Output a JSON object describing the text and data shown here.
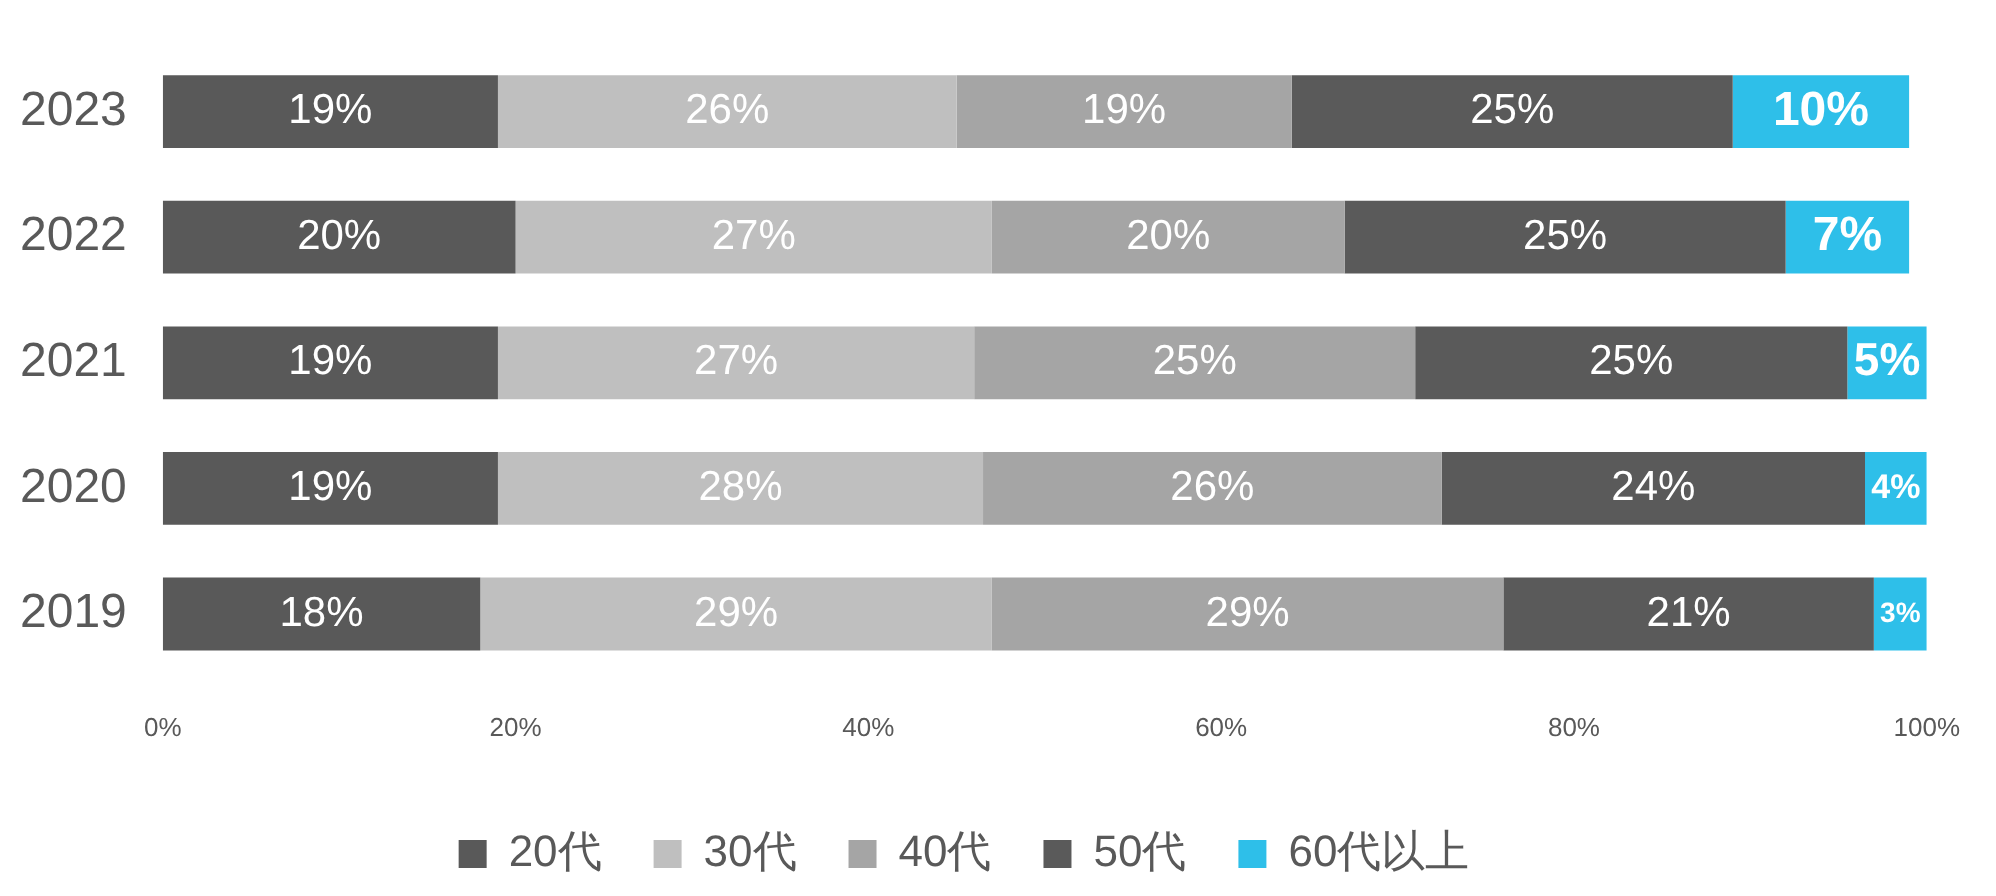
{
  "chart_data": {
    "type": "bar",
    "orientation": "horizontal",
    "stacked": true,
    "categories": [
      "2023",
      "2022",
      "2021",
      "2020",
      "2019"
    ],
    "series": [
      {
        "name": "20代",
        "color": "#595959",
        "values": [
          19,
          20,
          19,
          19,
          18
        ],
        "value_labels": [
          "19%",
          "20%",
          "19%",
          "19%",
          "18%"
        ]
      },
      {
        "name": "30代",
        "color": "#bfbfbf",
        "values": [
          26,
          27,
          27,
          27.5,
          29
        ],
        "value_labels": [
          "26%",
          "27%",
          "27%",
          "28%",
          "29%"
        ]
      },
      {
        "name": "40代",
        "color": "#a5a5a5",
        "values": [
          19,
          20,
          25,
          26,
          29
        ],
        "value_labels": [
          "19%",
          "20%",
          "25%",
          "26%",
          "29%"
        ]
      },
      {
        "name": "50代",
        "color": "#5a5a5a",
        "values": [
          25,
          25,
          24.5,
          24,
          21
        ],
        "value_labels": [
          "25%",
          "25%",
          "25%",
          "24%",
          "21%"
        ]
      },
      {
        "name": "60代以上",
        "color": "#2ebfe9",
        "values": [
          10,
          7,
          4.5,
          3.5,
          3
        ],
        "value_labels": [
          "10%",
          "7%",
          "5%",
          "4%",
          "3%"
        ]
      }
    ],
    "xlim": [
      0,
      100
    ],
    "xticks": [
      {
        "value": 0,
        "label": "0%"
      },
      {
        "value": 20,
        "label": "20%"
      },
      {
        "value": 40,
        "label": "40%"
      },
      {
        "value": 60,
        "label": "60%"
      },
      {
        "value": 80,
        "label": "80%"
      },
      {
        "value": 100,
        "label": "100%"
      }
    ],
    "grid": false,
    "legend": "bottom"
  }
}
